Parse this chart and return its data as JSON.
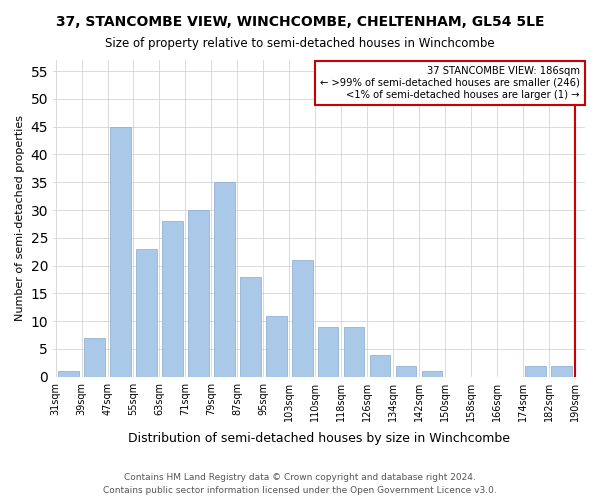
{
  "title": "37, STANCOMBE VIEW, WINCHCOMBE, CHELTENHAM, GL54 5LE",
  "subtitle": "Size of property relative to semi-detached houses in Winchcombe",
  "xlabel": "Distribution of semi-detached houses by size in Winchcombe",
  "ylabel": "Number of semi-detached properties",
  "bin_labels": [
    "31sqm",
    "39sqm",
    "47sqm",
    "55sqm",
    "63sqm",
    "71sqm",
    "79sqm",
    "87sqm",
    "95sqm",
    "103sqm",
    "110sqm",
    "118sqm",
    "126sqm",
    "134sqm",
    "142sqm",
    "150sqm",
    "158sqm",
    "166sqm",
    "174sqm",
    "182sqm",
    "190sqm"
  ],
  "values": [
    1,
    7,
    45,
    23,
    28,
    30,
    35,
    18,
    11,
    21,
    9,
    9,
    4,
    2,
    1,
    0,
    0,
    0,
    2,
    2
  ],
  "bar_color": "#aac8e8",
  "bar_edge_color": "#88aad0",
  "red_line_x": 19.5,
  "highlight_bar_color": "#cc0000",
  "ylim": [
    0,
    57
  ],
  "yticks": [
    0,
    5,
    10,
    15,
    20,
    25,
    30,
    35,
    40,
    45,
    50,
    55
  ],
  "annotation_title": "37 STANCOMBE VIEW: 186sqm",
  "annotation_line1": "← >99% of semi-detached houses are smaller (246)",
  "annotation_line2": "<1% of semi-detached houses are larger (1) →",
  "annotation_box_color": "#ffffff",
  "annotation_box_edge": "#cc0000",
  "footnote1": "Contains HM Land Registry data © Crown copyright and database right 2024.",
  "footnote2": "Contains public sector information licensed under the Open Government Licence v3.0.",
  "grid_color": "#cccccc",
  "background_color": "#ffffff"
}
